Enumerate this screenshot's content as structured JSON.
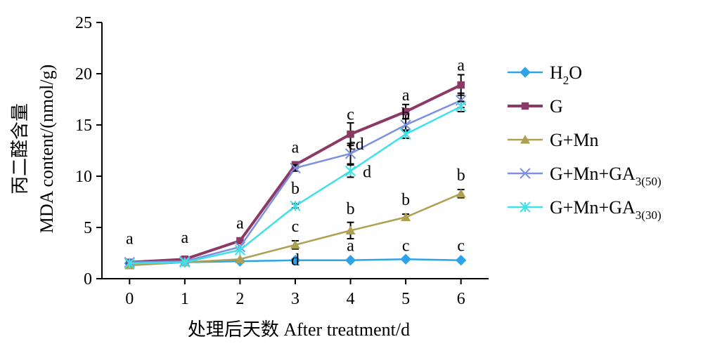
{
  "chart_data": {
    "type": "line",
    "x": [
      0,
      1,
      2,
      3,
      4,
      5,
      6
    ],
    "xlim": [
      -0.5,
      6.5
    ],
    "ylim": [
      0,
      25
    ],
    "xticks": [
      "0",
      "1",
      "2",
      "3",
      "4",
      "5",
      "6"
    ],
    "yticks": [
      "0",
      "5",
      "10",
      "15",
      "20",
      "25"
    ],
    "xlabel": "处理后天数 After treatment/d",
    "ylabel": [
      "丙二醛含量",
      "MDA content/(nmol/g)"
    ],
    "grid": false,
    "legend_position": "right",
    "series": [
      {
        "name": "H₂O",
        "legend": {
          "main": "H",
          "sub": "2",
          "tail": "O"
        },
        "color": "#2EA3E8",
        "marker": "diamond",
        "values": [
          1.5,
          1.6,
          1.7,
          1.8,
          1.8,
          1.9,
          1.8
        ],
        "errors": [
          0,
          0,
          0,
          0,
          0,
          0,
          0
        ]
      },
      {
        "name": "G",
        "legend": {
          "main": "G",
          "sub": "",
          "tail": ""
        },
        "color": "#8B3A66",
        "marker": "square",
        "values": [
          1.6,
          1.9,
          3.7,
          11.1,
          14.1,
          16.3,
          18.9
        ],
        "errors": [
          0,
          0,
          0,
          0.3,
          1.1,
          0.7,
          1.0
        ]
      },
      {
        "name": "G+Mn",
        "legend": {
          "main": "G+Mn",
          "sub": "",
          "tail": ""
        },
        "color": "#ADA050",
        "marker": "triangle",
        "values": [
          1.3,
          1.6,
          1.9,
          3.3,
          4.7,
          6.0,
          8.3
        ],
        "errors": [
          0,
          0,
          0,
          0.4,
          0.8,
          0.3,
          0.4
        ]
      },
      {
        "name": "G+Mn+GA3(50)",
        "legend": {
          "main": "G+Mn+GA",
          "sub": "3(50)",
          "tail": ""
        },
        "color": "#7C8FE0",
        "marker": "x",
        "values": [
          1.6,
          1.7,
          3.1,
          10.8,
          12.2,
          15.0,
          17.4
        ],
        "errors": [
          0,
          0,
          0,
          0.3,
          1.0,
          0.6,
          0.7
        ]
      },
      {
        "name": "G+Mn+GA3(30)",
        "legend": {
          "main": "G+Mn+GA",
          "sub": "3(30)",
          "tail": ""
        },
        "color": "#3FE0E8",
        "marker": "star",
        "values": [
          1.5,
          1.6,
          2.8,
          7.1,
          10.5,
          14.1,
          16.8
        ],
        "errors": [
          0,
          0,
          0,
          0.2,
          0.6,
          0.4,
          0.5
        ]
      }
    ],
    "annotations": [
      {
        "x": 0,
        "y": 3.4,
        "text": "a"
      },
      {
        "x": 1,
        "y": 3.5,
        "text": "a"
      },
      {
        "x": 2,
        "y": 4.9,
        "text": "a"
      },
      {
        "x": 3,
        "y": 12.3,
        "text": "a"
      },
      {
        "x": 4,
        "y": 15.5,
        "text": "c"
      },
      {
        "x": 5,
        "y": 17.4,
        "text": "a"
      },
      {
        "x": 6,
        "y": 20.3,
        "text": "a"
      },
      {
        "x": 3,
        "y": 8.3,
        "text": "b"
      },
      {
        "x": 4.1,
        "y": 12.6,
        "text": "cd"
      },
      {
        "x": 4.3,
        "y": 9.9,
        "text": "d"
      },
      {
        "x": 5,
        "y": 15.5,
        "text": "b"
      },
      {
        "x": 3,
        "y": 4.6,
        "text": "c"
      },
      {
        "x": 4,
        "y": 6.3,
        "text": "b"
      },
      {
        "x": 5,
        "y": 7.2,
        "text": "b"
      },
      {
        "x": 6,
        "y": 9.6,
        "text": "b"
      },
      {
        "x": 3,
        "y": 1.3,
        "text": "d"
      },
      {
        "x": 4,
        "y": 2.7,
        "text": "a"
      },
      {
        "x": 5,
        "y": 2.7,
        "text": "c"
      },
      {
        "x": 6,
        "y": 2.7,
        "text": "c"
      }
    ]
  }
}
